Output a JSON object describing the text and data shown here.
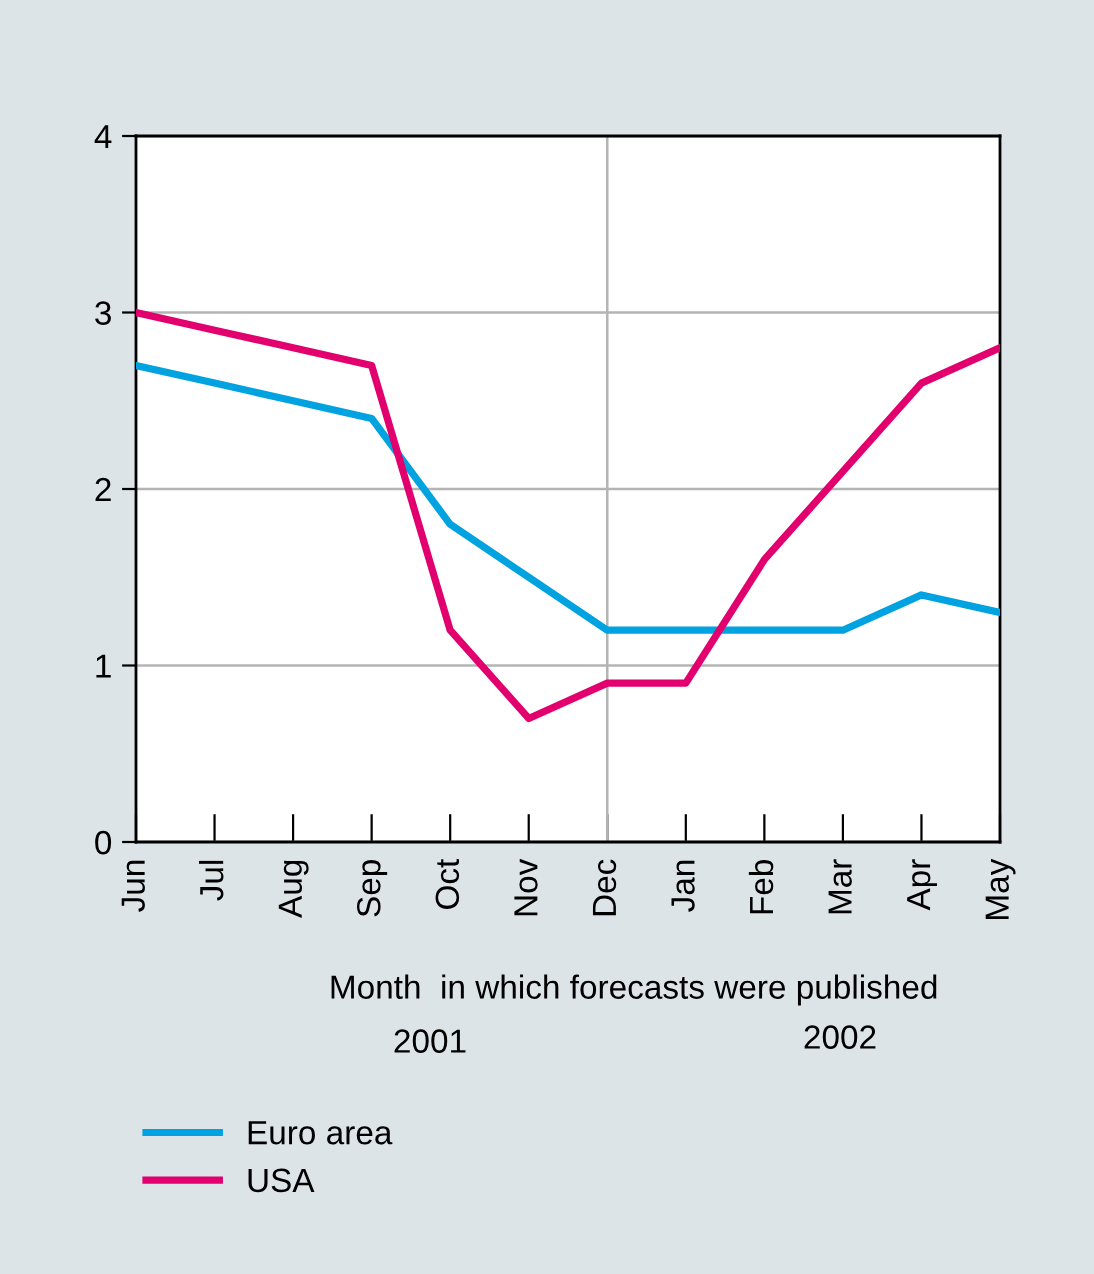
{
  "chart_data": {
    "type": "line",
    "xlabel": "Month  in which forecasts were published",
    "categories": [
      "Jun",
      "Jul",
      "Aug",
      "Sep",
      "Oct",
      "Nov",
      "Dec",
      "Jan",
      "Feb",
      "Mar",
      "Apr",
      "May"
    ],
    "series": [
      {
        "name": "Euro area",
        "color": "#00a3e0",
        "values": [
          2.7,
          2.6,
          2.5,
          2.4,
          1.8,
          1.5,
          1.2,
          1.2,
          1.2,
          1.2,
          1.4,
          1.3
        ]
      },
      {
        "name": "USA",
        "color": "#e2006e",
        "values": [
          3.0,
          2.9,
          2.8,
          2.7,
          1.2,
          0.7,
          0.9,
          0.9,
          1.6,
          2.1,
          2.6,
          2.8
        ]
      }
    ],
    "ylim": [
      0,
      4
    ],
    "yticks": [
      0,
      1,
      2,
      3,
      4
    ],
    "grid": "y",
    "ref_lines": [
      {
        "axis": "x",
        "value": "Dec",
        "color": "#b4b4b4"
      }
    ],
    "annotations": [
      "2001",
      "2002"
    ],
    "legend": "bottom",
    "line_style": "solid",
    "marker": "none"
  }
}
